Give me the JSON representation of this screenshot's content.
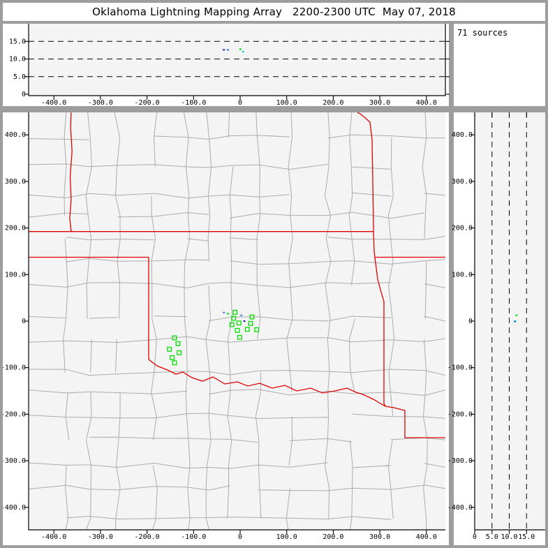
{
  "title": "Oklahoma Lightning Mapping Array   2200-2300 UTC  May 07, 2018",
  "sources_label": "71 sources",
  "colors": {
    "frame": "#9d9d9d",
    "plot_bg": "#f4f4f4",
    "county": "#ababab",
    "state_border": "#e00000",
    "source_green": "#00dd00",
    "dot_blue": "#2e7bd6",
    "dot_cyan": "#00cccc",
    "dot_navy": "#1a1aae",
    "axis_black": "#000000"
  },
  "axes": {
    "ew_ticks": [
      {
        "v": -400,
        "label": "-400.0"
      },
      {
        "v": -300,
        "label": "-300.0"
      },
      {
        "v": -200,
        "label": "-200.0"
      },
      {
        "v": -100,
        "label": "-100.0"
      },
      {
        "v": 0,
        "label": "0"
      },
      {
        "v": 100,
        "label": "100.0"
      },
      {
        "v": 200,
        "label": "200.0"
      },
      {
        "v": 300,
        "label": "300.0"
      },
      {
        "v": 400,
        "label": "400.0"
      }
    ],
    "ns_ticks": [
      {
        "v": 400,
        "label": "400.0"
      },
      {
        "v": 300,
        "label": "300.0"
      },
      {
        "v": 200,
        "label": "200.0"
      },
      {
        "v": 100,
        "label": "100.0"
      },
      {
        "v": 0,
        "label": "0"
      },
      {
        "v": -100,
        "label": "-100.0"
      },
      {
        "v": -200,
        "label": "-200.0"
      },
      {
        "v": -300,
        "label": "-300.0"
      },
      {
        "v": -400,
        "label": "-400.0"
      }
    ],
    "alt_ticks": [
      {
        "v": 0,
        "label": "0"
      },
      {
        "v": 5,
        "label": "5.0"
      },
      {
        "v": 10,
        "label": "10.0"
      },
      {
        "v": 15,
        "label": "15.0"
      }
    ],
    "alt_dashed_levels": [
      5,
      10,
      15
    ]
  },
  "chart_data": [
    {
      "id": "alt-ew-panel",
      "type": "scatter",
      "xlim": [
        -454,
        441
      ],
      "ylim": [
        0,
        20.4
      ],
      "points": [
        {
          "x": -34.9,
          "alt": 12.6,
          "color": "dot_navy"
        },
        {
          "x": -26.2,
          "alt": 12.6,
          "color": "dot_blue"
        },
        {
          "x": 0.7,
          "alt": 12.8,
          "color": "source_green"
        },
        {
          "x": 6.4,
          "alt": 12.1,
          "color": "dot_cyan"
        }
      ]
    },
    {
      "id": "map-panel",
      "type": "scatter",
      "xlim": [
        -454,
        441
      ],
      "ylim": [
        -448,
        448
      ],
      "squares": [
        {
          "x": -10.9,
          "y": 19.0
        },
        {
          "x": -13.9,
          "y": 6.0
        },
        {
          "x": -17.5,
          "y": -7.5
        },
        {
          "x": -2.5,
          "y": -4.0
        },
        {
          "x": -6.0,
          "y": -19.9
        },
        {
          "x": -1.0,
          "y": -34.9
        },
        {
          "x": 15.4,
          "y": -17.5
        },
        {
          "x": 25.5,
          "y": 9.0
        },
        {
          "x": 22.5,
          "y": -4.9
        },
        {
          "x": 35.5,
          "y": -18.4
        },
        {
          "x": -140.9,
          "y": -36.0
        },
        {
          "x": -133.4,
          "y": -48.4
        },
        {
          "x": -151.9,
          "y": -60.4
        },
        {
          "x": -130.9,
          "y": -67.9
        },
        {
          "x": -145.9,
          "y": -78.4
        },
        {
          "x": -140.9,
          "y": -89.5
        }
      ],
      "dots": [
        {
          "x": -34.9,
          "y": 18.4,
          "color": "dot_blue"
        },
        {
          "x": -25.9,
          "y": 16.0,
          "color": "source_green"
        },
        {
          "x": 2.5,
          "y": 12.4,
          "color": "dot_blue"
        },
        {
          "x": 9.0,
          "y": 0.0,
          "color": "dot_navy"
        }
      ],
      "state_borders": [
        {
          "name": "co-ks-border",
          "pts": [
            [
              -363,
              448
            ],
            [
              -364,
              415
            ],
            [
              -361,
              365
            ],
            [
              -365,
              310
            ],
            [
              -363,
              262
            ],
            [
              -366,
              220
            ],
            [
              -363,
              194
            ],
            [
              -360,
              192.4
            ]
          ]
        },
        {
          "name": "kansas-37n-border",
          "pts": [
            [
              -454,
              192.4
            ],
            [
              286.4,
              192.4
            ]
          ]
        },
        {
          "name": "panhandle-365n-border",
          "pts": [
            [
              -454,
              137.2
            ],
            [
              -196.4,
              137.2
            ]
          ]
        },
        {
          "name": "texas-100w-border",
          "pts": [
            [
              -196.4,
              137.2
            ],
            [
              -196.4,
              -82.5
            ]
          ]
        },
        {
          "name": "red-river-border",
          "pts": [
            [
              -196.4,
              -82.5
            ],
            [
              -178.4,
              -96.0
            ],
            [
              -155.9,
              -105.0
            ],
            [
              -137.9,
              -113.9
            ],
            [
              -122.9,
              -109.4
            ],
            [
              -103.4,
              -121.4
            ],
            [
              -81.0,
              -128.9
            ],
            [
              -58.5,
              -119.9
            ],
            [
              -33.0,
              -134.9
            ],
            [
              -6.0,
              -130.4
            ],
            [
              16.5,
              -139.4
            ],
            [
              42.0,
              -133.4
            ],
            [
              69.0,
              -143.9
            ],
            [
              96.0,
              -137.9
            ],
            [
              121.4,
              -149.9
            ],
            [
              151.4,
              -143.9
            ],
            [
              176.9,
              -154.4
            ],
            [
              203.9,
              -149.9
            ],
            [
              229.4,
              -143.9
            ],
            [
              248.9,
              -152.9
            ],
            [
              263.9,
              -157.4
            ],
            [
              286.4,
              -167.9
            ],
            [
              301.3,
              -176.9
            ],
            [
              311.8,
              -182.9
            ]
          ]
        },
        {
          "name": "missouri-arkansas-border",
          "pts": [
            [
              251.9,
              448
            ],
            [
              257.9,
              445.3
            ],
            [
              266.9,
              437.8
            ],
            [
              278.9,
              427.3
            ],
            [
              283.4,
              389.8
            ],
            [
              284.9,
              299.9
            ],
            [
              286.4,
              192.4
            ],
            [
              287.9,
              149.9
            ],
            [
              289.4,
              137.2
            ],
            [
              295.4,
              90.0
            ],
            [
              301.3,
              67.5
            ],
            [
              308.8,
              42.0
            ],
            [
              308.8,
              -90.0
            ],
            [
              308.8,
              -176.9
            ],
            [
              311.8,
              -182.9
            ]
          ]
        },
        {
          "name": "mo-ar-365n-border",
          "pts": [
            [
              289.4,
              137.2
            ],
            [
              440.8,
              137.2
            ]
          ]
        },
        {
          "name": "tx-ar-la-border",
          "pts": [
            [
              311.8,
              -182.9
            ],
            [
              331.3,
              -186.0
            ],
            [
              353.8,
              -191.9
            ],
            [
              353.8,
              -250.4
            ],
            [
              440.8,
              -250.4
            ]
          ]
        }
      ]
    },
    {
      "id": "alt-ns-panel",
      "type": "scatter",
      "xlim": [
        0,
        20.4
      ],
      "ylim": [
        -448,
        448
      ],
      "points": [
        {
          "alt": 12.1,
          "y": 12.5,
          "color": "source_green"
        },
        {
          "alt": 11.7,
          "y": 0.0,
          "color": "dot_cyan"
        },
        {
          "alt": 11.6,
          "y": -1.1,
          "color": "dot_blue"
        }
      ]
    }
  ]
}
